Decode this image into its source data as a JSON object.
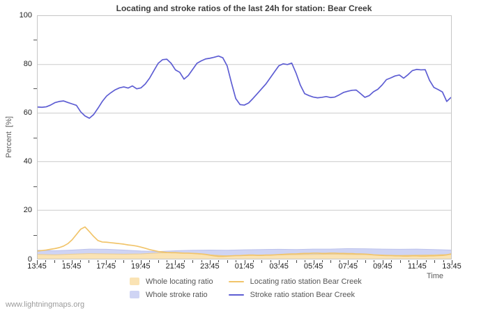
{
  "page": {
    "watermark": "www.lightningmaps.org",
    "background": "#ffffff"
  },
  "chart_data": {
    "type": "line",
    "title": "Locating and stroke ratios of the last 24h for station: Bear Creek",
    "xlabel": "Time",
    "ylabel": "Percent  [%]",
    "ylim": [
      0,
      100
    ],
    "grid": true,
    "legend_position": "bottom",
    "y_ticks": [
      0,
      20,
      40,
      60,
      80,
      100
    ],
    "y_minor_ticks": [
      10,
      30,
      50,
      70,
      90
    ],
    "x_hours_span": 24,
    "x_minor_tick_interval_min": 30,
    "x_tick_labels": [
      "13:45",
      "15:45",
      "17:45",
      "19:45",
      "21:45",
      "23:45",
      "01:45",
      "03:45",
      "05:45",
      "07:45",
      "09:45",
      "11:45",
      "13:45"
    ],
    "colors": {
      "grid": "#cccccc",
      "frame": "#c6c6c6",
      "whole_locating_fill": "#fae3b4",
      "whole_stroke_fill": "#cfd4f4",
      "station_locating_line": "#f1c46a",
      "station_stroke_line": "#5d5dd3"
    },
    "series": [
      {
        "name": "Whole stroke ratio",
        "kind": "area",
        "color": "#cfd4f4",
        "edge": "#bcc2ec",
        "x_step_hours": 1,
        "values": [
          3.5,
          3.3,
          3.6,
          4.0,
          3.9,
          3.6,
          3.2,
          3.0,
          3.3,
          3.5,
          3.6,
          3.5,
          3.7,
          3.8,
          3.9,
          3.8,
          4.0,
          4.0,
          4.2,
          4.1,
          4.0,
          3.9,
          4.0,
          3.8,
          3.6
        ]
      },
      {
        "name": "Whole locating ratio",
        "kind": "area",
        "color": "#fae3b4",
        "edge": "#e7cb94",
        "x_step_hours": 1,
        "values": [
          1.8,
          1.6,
          1.9,
          2.1,
          2.0,
          1.9,
          2.0,
          2.4,
          2.5,
          2.2,
          1.6,
          1.2,
          1.3,
          1.5,
          1.6,
          1.7,
          1.8,
          1.9,
          1.8,
          1.7,
          1.5,
          1.4,
          1.5,
          1.6,
          1.8
        ]
      },
      {
        "name": "Locating ratio station Bear Creek",
        "kind": "line",
        "color": "#f1c46a",
        "x_step_hours": 0.25,
        "values": [
          3.2,
          3.4,
          3.6,
          3.9,
          4.2,
          4.6,
          5.2,
          6.2,
          7.8,
          10.0,
          12.2,
          13.1,
          11.2,
          9.2,
          7.5,
          6.9,
          6.8,
          6.6,
          6.4,
          6.2,
          6.0,
          5.7,
          5.5,
          5.2,
          4.8,
          4.3,
          3.8,
          3.4,
          3.0,
          2.8,
          2.6,
          2.5,
          2.5,
          2.4,
          2.3,
          2.3,
          2.2,
          2.1,
          2.0,
          1.8,
          1.5,
          1.2,
          1.0,
          1.0,
          1.1,
          1.2,
          1.3,
          1.3,
          1.4,
          1.5,
          1.5,
          1.4,
          1.4,
          1.5,
          1.5,
          1.6,
          1.7,
          1.8,
          1.9,
          2.0,
          2.0,
          2.1,
          2.2,
          2.2,
          2.3,
          2.3,
          2.2,
          2.2,
          2.3,
          2.3,
          2.2,
          2.2,
          2.1,
          2.1,
          2.0,
          2.0,
          1.9,
          1.8,
          1.6,
          1.5,
          1.4,
          1.3,
          1.3,
          1.2,
          1.2,
          1.1,
          1.1,
          1.2,
          1.2,
          1.1,
          1.1,
          1.2,
          1.2,
          1.3,
          1.4,
          1.6,
          2.0
        ]
      },
      {
        "name": "Stroke ratio station Bear Creek",
        "kind": "line",
        "color": "#5d5dd3",
        "x_step_hours": 0.25,
        "values": [
          62.5,
          62.4,
          62.6,
          63.3,
          64.3,
          64.8,
          65.0,
          64.4,
          63.8,
          63.2,
          60.5,
          58.8,
          57.9,
          59.4,
          62.0,
          64.8,
          67.0,
          68.4,
          69.6,
          70.4,
          70.8,
          70.3,
          71.2,
          70.0,
          70.4,
          72.0,
          74.4,
          77.5,
          80.5,
          82.0,
          82.2,
          80.5,
          77.8,
          76.8,
          74.0,
          75.5,
          78.0,
          80.5,
          81.5,
          82.3,
          82.6,
          83.0,
          83.5,
          82.8,
          79.5,
          72.5,
          66.0,
          63.5,
          63.3,
          64.2,
          66.0,
          68.0,
          70.0,
          72.0,
          74.5,
          77.0,
          79.5,
          80.3,
          80.0,
          80.6,
          76.5,
          71.5,
          68.0,
          67.2,
          66.6,
          66.3,
          66.5,
          66.8,
          66.4,
          66.6,
          67.5,
          68.5,
          69.0,
          69.4,
          69.5,
          68.0,
          66.5,
          67.2,
          68.8,
          69.8,
          71.6,
          73.8,
          74.5,
          75.3,
          75.7,
          74.4,
          75.8,
          77.5,
          78.0,
          77.8,
          77.9,
          73.5,
          70.6,
          69.7,
          68.7,
          64.8,
          66.5
        ]
      }
    ]
  },
  "legend": {
    "items": [
      {
        "label": "Whole locating ratio",
        "swatch": "fill",
        "color": "#fae3b4"
      },
      {
        "label": "Whole stroke ratio",
        "swatch": "fill",
        "color": "#cfd4f4"
      },
      {
        "label": "Locating ratio station Bear Creek",
        "swatch": "line",
        "color": "#f1c46a"
      },
      {
        "label": "Stroke ratio station Bear Creek",
        "swatch": "line",
        "color": "#5d5dd3"
      }
    ]
  }
}
